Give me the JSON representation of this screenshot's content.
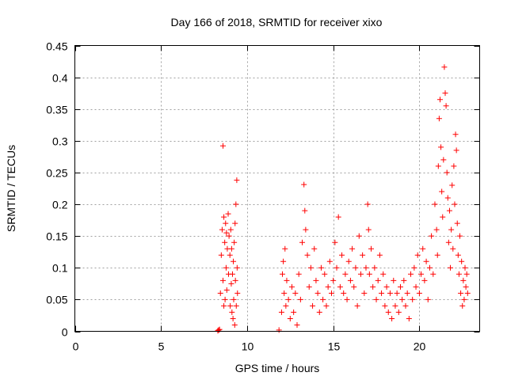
{
  "chart_data": {
    "type": "scatter",
    "title": "Day 166 of 2018, SRMTID for receiver xixo",
    "xlabel": "GPS time / hours",
    "ylabel": "SRMTID / TECUs",
    "xlim": [
      0,
      23.5
    ],
    "ylim": [
      0,
      0.45
    ],
    "x_ticks": [
      0,
      5,
      10,
      15,
      20
    ],
    "y_ticks": [
      0,
      0.05,
      0.1,
      0.15,
      0.2,
      0.25,
      0.3,
      0.35,
      0.4,
      0.45
    ],
    "x_tick_labels": [
      "0",
      "5",
      "10",
      "15",
      "20"
    ],
    "y_tick_labels": [
      "0",
      "0.05",
      "0.1",
      "0.15",
      "0.2",
      "0.25",
      "0.3",
      "0.35",
      "0.4",
      "0.45"
    ],
    "grid": true,
    "marker": "plus",
    "color": "#ff0000",
    "series": [
      {
        "name": "SRMTID",
        "segments": [
          {
            "x_range": [
              8.3,
              9.45
            ],
            "points": [
              [
                8.3,
                0.001
              ],
              [
                8.35,
                0.002
              ],
              [
                8.4,
                0.003
              ],
              [
                8.45,
                0.06
              ],
              [
                8.5,
                0.12
              ],
              [
                8.55,
                0.16
              ],
              [
                8.6,
                0.292
              ],
              [
                8.6,
                0.08
              ],
              [
                8.65,
                0.18
              ],
              [
                8.65,
                0.04
              ],
              [
                8.7,
                0.14
              ],
              [
                8.72,
                0.05
              ],
              [
                8.75,
                0.17
              ],
              [
                8.78,
                0.1
              ],
              [
                8.8,
                0.155
              ],
              [
                8.82,
                0.065
              ],
              [
                8.85,
                0.13
              ],
              [
                8.9,
                0.185
              ],
              [
                8.92,
                0.09
              ],
              [
                8.95,
                0.15
              ],
              [
                9.0,
                0.12
              ],
              [
                9.02,
                0.04
              ],
              [
                9.05,
                0.16
              ],
              [
                9.08,
                0.075
              ],
              [
                9.1,
                0.13
              ],
              [
                9.12,
                0.03
              ],
              [
                9.15,
                0.09
              ],
              [
                9.18,
                0.02
              ],
              [
                9.2,
                0.11
              ],
              [
                9.22,
                0.05
              ],
              [
                9.25,
                0.14
              ],
              [
                9.28,
                0.01
              ],
              [
                9.3,
                0.17
              ],
              [
                9.32,
                0.08
              ],
              [
                9.35,
                0.2
              ],
              [
                9.37,
                0.04
              ],
              [
                9.4,
                0.238
              ],
              [
                9.42,
                0.1
              ],
              [
                9.44,
                0.06
              ]
            ]
          },
          {
            "x_range": [
              11.85,
              22.8
            ],
            "points": [
              [
                11.85,
                0.002
              ],
              [
                12.0,
                0.03
              ],
              [
                12.05,
                0.09
              ],
              [
                12.1,
                0.11
              ],
              [
                12.15,
                0.06
              ],
              [
                12.2,
                0.13
              ],
              [
                12.25,
                0.04
              ],
              [
                12.3,
                0.08
              ],
              [
                12.4,
                0.05
              ],
              [
                12.5,
                0.02
              ],
              [
                12.6,
                0.07
              ],
              [
                12.7,
                0.03
              ],
              [
                12.8,
                0.06
              ],
              [
                12.9,
                0.01
              ],
              [
                13.0,
                0.09
              ],
              [
                13.1,
                0.05
              ],
              [
                13.2,
                0.14
              ],
              [
                13.3,
                0.231
              ],
              [
                13.35,
                0.19
              ],
              [
                13.4,
                0.16
              ],
              [
                13.5,
                0.12
              ],
              [
                13.6,
                0.07
              ],
              [
                13.7,
                0.1
              ],
              [
                13.8,
                0.04
              ],
              [
                13.9,
                0.13
              ],
              [
                14.0,
                0.08
              ],
              [
                14.1,
                0.06
              ],
              [
                14.2,
                0.03
              ],
              [
                14.3,
                0.1
              ],
              [
                14.4,
                0.05
              ],
              [
                14.5,
                0.09
              ],
              [
                14.6,
                0.04
              ],
              [
                14.7,
                0.07
              ],
              [
                14.8,
                0.11
              ],
              [
                14.9,
                0.06
              ],
              [
                15.0,
                0.08
              ],
              [
                15.1,
                0.14
              ],
              [
                15.2,
                0.1
              ],
              [
                15.3,
                0.18
              ],
              [
                15.4,
                0.07
              ],
              [
                15.5,
                0.12
              ],
              [
                15.6,
                0.06
              ],
              [
                15.7,
                0.09
              ],
              [
                15.8,
                0.05
              ],
              [
                15.9,
                0.11
              ],
              [
                16.0,
                0.08
              ],
              [
                16.1,
                0.13
              ],
              [
                16.2,
                0.07
              ],
              [
                16.3,
                0.1
              ],
              [
                16.4,
                0.04
              ],
              [
                16.5,
                0.15
              ],
              [
                16.6,
                0.09
              ],
              [
                16.7,
                0.12
              ],
              [
                16.8,
                0.06
              ],
              [
                16.9,
                0.1
              ],
              [
                17.0,
                0.2
              ],
              [
                17.05,
                0.16
              ],
              [
                17.1,
                0.09
              ],
              [
                17.2,
                0.13
              ],
              [
                17.3,
                0.07
              ],
              [
                17.4,
                0.1
              ],
              [
                17.5,
                0.05
              ],
              [
                17.6,
                0.08
              ],
              [
                17.7,
                0.12
              ],
              [
                17.8,
                0.06
              ],
              [
                17.9,
                0.09
              ],
              [
                18.0,
                0.04
              ],
              [
                18.1,
                0.07
              ],
              [
                18.2,
                0.03
              ],
              [
                18.3,
                0.06
              ],
              [
                18.4,
                0.02
              ],
              [
                18.5,
                0.08
              ],
              [
                18.6,
                0.04
              ],
              [
                18.7,
                0.06
              ],
              [
                18.8,
                0.03
              ],
              [
                18.9,
                0.07
              ],
              [
                19.0,
                0.05
              ],
              [
                19.1,
                0.08
              ],
              [
                19.2,
                0.04
              ],
              [
                19.3,
                0.06
              ],
              [
                19.4,
                0.02
              ],
              [
                19.5,
                0.09
              ],
              [
                19.6,
                0.05
              ],
              [
                19.7,
                0.1
              ],
              [
                19.8,
                0.07
              ],
              [
                19.9,
                0.12
              ],
              [
                20.0,
                0.06
              ],
              [
                20.1,
                0.09
              ],
              [
                20.2,
                0.13
              ],
              [
                20.3,
                0.08
              ],
              [
                20.4,
                0.11
              ],
              [
                20.5,
                0.05
              ],
              [
                20.6,
                0.1
              ],
              [
                20.7,
                0.15
              ],
              [
                20.8,
                0.09
              ],
              [
                20.9,
                0.2
              ],
              [
                21.0,
                0.16
              ],
              [
                21.05,
                0.12
              ],
              [
                21.1,
                0.26
              ],
              [
                21.15,
                0.335
              ],
              [
                21.2,
                0.365
              ],
              [
                21.25,
                0.29
              ],
              [
                21.3,
                0.22
              ],
              [
                21.35,
                0.18
              ],
              [
                21.4,
                0.27
              ],
              [
                21.45,
                0.416
              ],
              [
                21.5,
                0.375
              ],
              [
                21.55,
                0.355
              ],
              [
                21.6,
                0.25
              ],
              [
                21.65,
                0.21
              ],
              [
                21.7,
                0.14
              ],
              [
                21.75,
                0.19
              ],
              [
                21.8,
                0.1
              ],
              [
                21.85,
                0.16
              ],
              [
                21.9,
                0.23
              ],
              [
                21.95,
                0.13
              ],
              [
                22.0,
                0.26
              ],
              [
                22.05,
                0.2
              ],
              [
                22.1,
                0.31
              ],
              [
                22.15,
                0.285
              ],
              [
                22.2,
                0.17
              ],
              [
                22.25,
                0.12
              ],
              [
                22.3,
                0.09
              ],
              [
                22.35,
                0.15
              ],
              [
                22.4,
                0.06
              ],
              [
                22.45,
                0.11
              ],
              [
                22.5,
                0.04
              ],
              [
                22.55,
                0.08
              ],
              [
                22.6,
                0.05
              ],
              [
                22.65,
                0.1
              ],
              [
                22.7,
                0.07
              ],
              [
                22.75,
                0.09
              ],
              [
                22.8,
                0.06
              ]
            ]
          }
        ]
      }
    ]
  }
}
